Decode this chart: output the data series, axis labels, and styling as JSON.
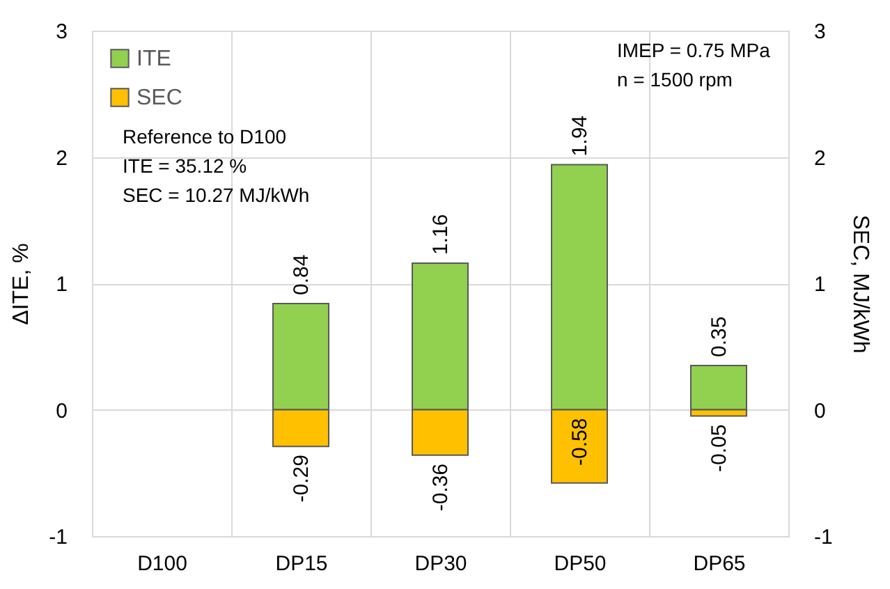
{
  "chart_data": {
    "type": "bar",
    "categories": [
      "D100",
      "DP15",
      "DP30",
      "DP50",
      "DP65"
    ],
    "series": [
      {
        "name": "ITE",
        "color": "#92d050",
        "values": [
          null,
          0.84,
          1.16,
          1.94,
          0.35
        ]
      },
      {
        "name": "SEC",
        "color": "#ffc000",
        "axis": "y2",
        "values": [
          null,
          -0.29,
          -0.36,
          -0.58,
          -0.05
        ]
      }
    ],
    "ylabel": "ΔITE, %",
    "y2label": "SEC, MJ/kWh",
    "ylim": [
      -1,
      3
    ],
    "yticks": [
      -1,
      0,
      1,
      2,
      3
    ],
    "y2lim": [
      -1,
      3
    ],
    "y2ticks": [
      -1,
      0,
      1,
      2,
      3
    ],
    "stacked": true,
    "data_labels": true,
    "grid": true,
    "legend": "top left",
    "annotations": [
      "Reference to D100\nITE = 35.12 %\nSEC = 10.27 MJ/kWh",
      "IMEP = 0.75 MPa\nn = 1500 rpm"
    ]
  }
}
